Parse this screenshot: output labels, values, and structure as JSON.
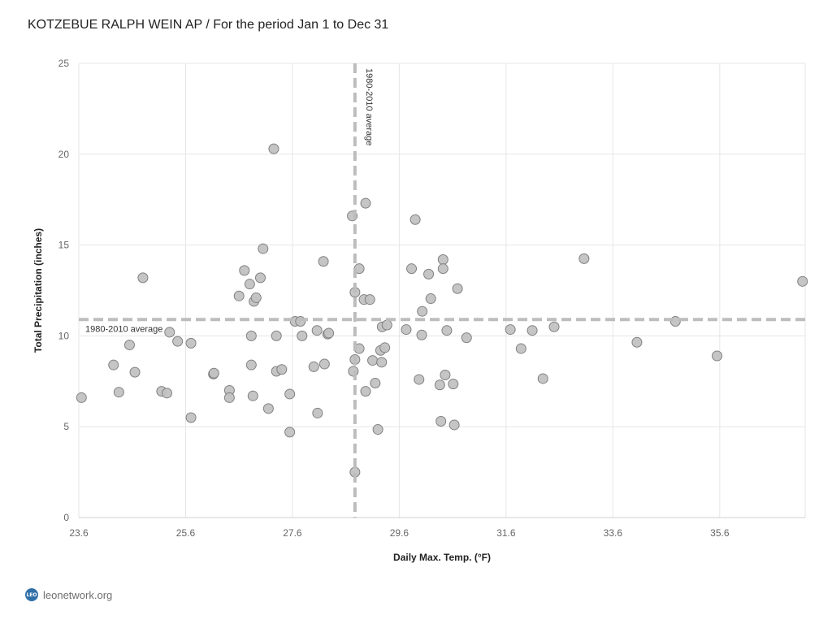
{
  "chart_title": "KOTZEBUE RALPH WEIN AP / For the period Jan 1 to Dec 31",
  "footer": {
    "logo_text": "LEO",
    "site": "leonetwork.org"
  },
  "colors": {
    "point_fill": "#c2c2c2",
    "point_stroke": "#808080",
    "avg_line": "#bdbdbd",
    "grid": "#e6e6e6"
  },
  "chart_data": {
    "type": "scatter",
    "xlabel": "Daily Max. Temp. (°F)",
    "ylabel": "Total Precipitation (inches)",
    "xlim": [
      23.6,
      37.2
    ],
    "ylim": [
      0,
      25
    ],
    "x_ticks": [
      23.6,
      25.6,
      27.6,
      29.6,
      31.6,
      33.6,
      35.6
    ],
    "y_ticks": [
      0,
      5,
      10,
      15,
      20,
      25
    ],
    "grid": true,
    "reference_lines": [
      {
        "axis": "x",
        "value": 28.77,
        "label": "1980-2010 average"
      },
      {
        "axis": "y",
        "value": 10.9,
        "label": "1980-2010 average"
      }
    ],
    "points": [
      [
        23.65,
        6.6
      ],
      [
        24.25,
        8.4
      ],
      [
        24.35,
        6.9
      ],
      [
        24.55,
        9.5
      ],
      [
        24.65,
        8.0
      ],
      [
        24.8,
        13.2
      ],
      [
        25.15,
        6.95
      ],
      [
        25.25,
        6.85
      ],
      [
        25.3,
        10.2
      ],
      [
        25.45,
        9.7
      ],
      [
        25.7,
        9.6
      ],
      [
        25.7,
        5.5
      ],
      [
        26.12,
        7.9
      ],
      [
        26.13,
        7.95
      ],
      [
        26.42,
        7.0
      ],
      [
        26.42,
        6.6
      ],
      [
        26.6,
        12.2
      ],
      [
        26.7,
        13.6
      ],
      [
        26.8,
        12.85
      ],
      [
        26.83,
        10.0
      ],
      [
        26.83,
        8.4
      ],
      [
        26.86,
        6.7
      ],
      [
        26.88,
        11.9
      ],
      [
        26.92,
        12.1
      ],
      [
        27.0,
        13.2
      ],
      [
        27.05,
        14.8
      ],
      [
        27.15,
        6.0
      ],
      [
        27.25,
        20.3
      ],
      [
        27.3,
        10.0
      ],
      [
        27.3,
        8.05
      ],
      [
        27.4,
        8.15
      ],
      [
        27.55,
        6.8
      ],
      [
        27.55,
        4.7
      ],
      [
        27.65,
        10.8
      ],
      [
        27.75,
        10.8
      ],
      [
        27.78,
        10.0
      ],
      [
        28.0,
        8.3
      ],
      [
        28.06,
        10.3
      ],
      [
        28.07,
        5.75
      ],
      [
        28.18,
        14.1
      ],
      [
        28.2,
        8.45
      ],
      [
        28.26,
        10.1
      ],
      [
        28.28,
        10.15
      ],
      [
        28.72,
        16.6
      ],
      [
        28.74,
        8.05
      ],
      [
        28.77,
        12.4
      ],
      [
        28.77,
        8.7
      ],
      [
        28.77,
        2.5
      ],
      [
        28.85,
        13.7
      ],
      [
        28.85,
        9.3
      ],
      [
        28.94,
        12.0
      ],
      [
        28.97,
        17.3
      ],
      [
        28.97,
        6.95
      ],
      [
        29.05,
        12.0
      ],
      [
        29.1,
        8.65
      ],
      [
        29.15,
        7.4
      ],
      [
        29.2,
        4.85
      ],
      [
        29.25,
        9.2
      ],
      [
        29.27,
        8.55
      ],
      [
        29.28,
        10.5
      ],
      [
        29.33,
        9.35
      ],
      [
        29.37,
        10.6
      ],
      [
        29.73,
        10.35
      ],
      [
        29.83,
        13.7
      ],
      [
        29.9,
        16.4
      ],
      [
        29.97,
        7.6
      ],
      [
        30.02,
        10.05
      ],
      [
        30.03,
        11.35
      ],
      [
        30.15,
        13.4
      ],
      [
        30.19,
        12.05
      ],
      [
        30.36,
        7.3
      ],
      [
        30.38,
        5.3
      ],
      [
        30.42,
        14.2
      ],
      [
        30.42,
        13.7
      ],
      [
        30.46,
        7.85
      ],
      [
        30.49,
        10.3
      ],
      [
        30.61,
        7.35
      ],
      [
        30.63,
        5.1
      ],
      [
        30.69,
        12.6
      ],
      [
        30.86,
        9.9
      ],
      [
        31.68,
        10.35
      ],
      [
        31.88,
        9.3
      ],
      [
        32.09,
        10.3
      ],
      [
        32.29,
        7.65
      ],
      [
        32.5,
        10.5
      ],
      [
        33.06,
        14.25
      ],
      [
        34.05,
        9.65
      ],
      [
        34.77,
        10.8
      ],
      [
        35.55,
        8.9
      ],
      [
        37.15,
        13.0
      ]
    ]
  }
}
